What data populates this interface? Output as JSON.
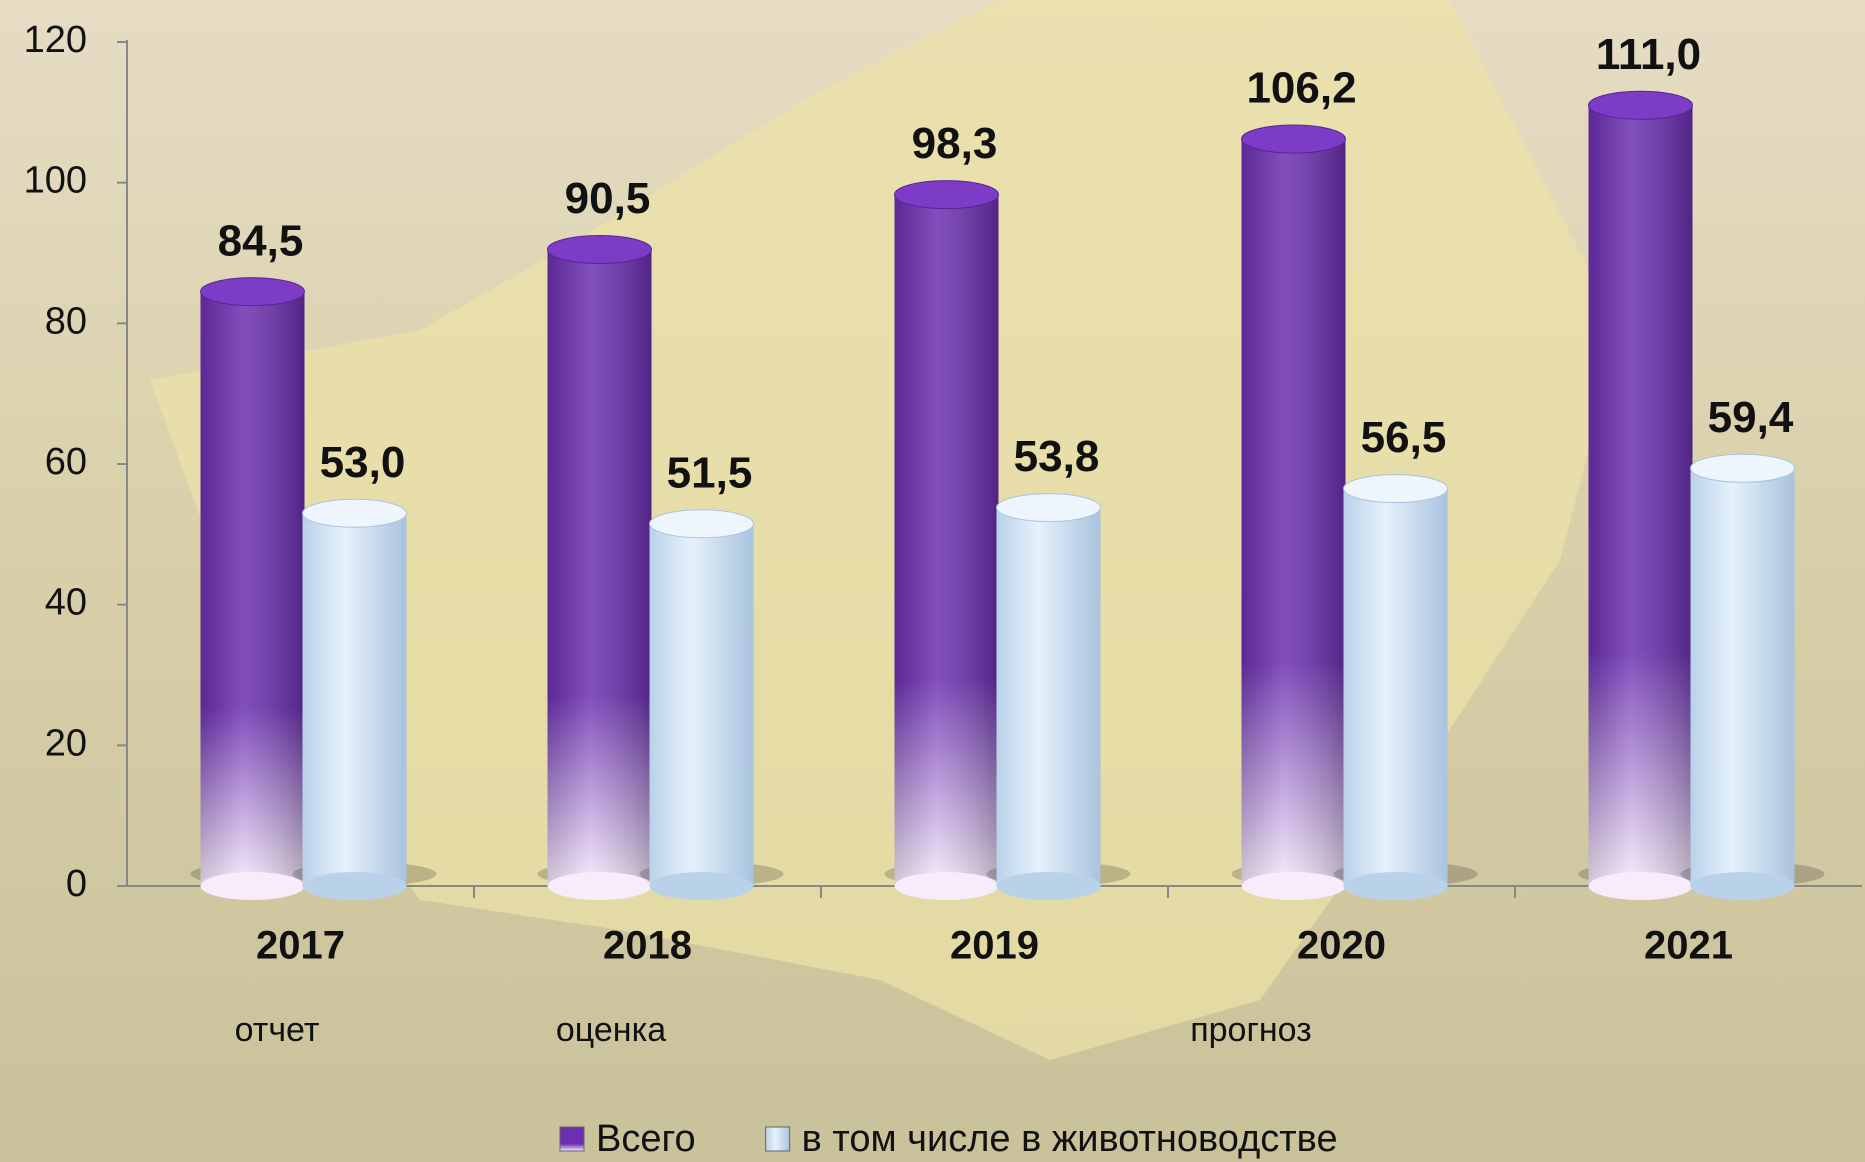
{
  "chart_data": {
    "type": "bar",
    "categories": [
      "2017",
      "2018",
      "2019",
      "2020",
      "2021"
    ],
    "annotations": [
      "отчет",
      "оценка",
      "прогноз"
    ],
    "series": [
      {
        "name": "Всего",
        "color": "#6b2fb0",
        "values": [
          84.5,
          90.5,
          98.3,
          106.2,
          111.0
        ],
        "value_labels": [
          "84,5",
          "90,5",
          "98,3",
          "106,2",
          "111,0"
        ]
      },
      {
        "name": "в том числе в животноводстве",
        "color": "#cfe2f4",
        "values": [
          53.0,
          51.5,
          53.8,
          56.5,
          59.4
        ],
        "value_labels": [
          "53,0",
          "51,5",
          "53,8",
          "56,5",
          "59,4"
        ]
      }
    ],
    "ylim": [
      0,
      120
    ],
    "yticks": [
      0,
      20,
      40,
      60,
      80,
      100,
      120
    ],
    "grid": false,
    "legend": "bottom"
  }
}
